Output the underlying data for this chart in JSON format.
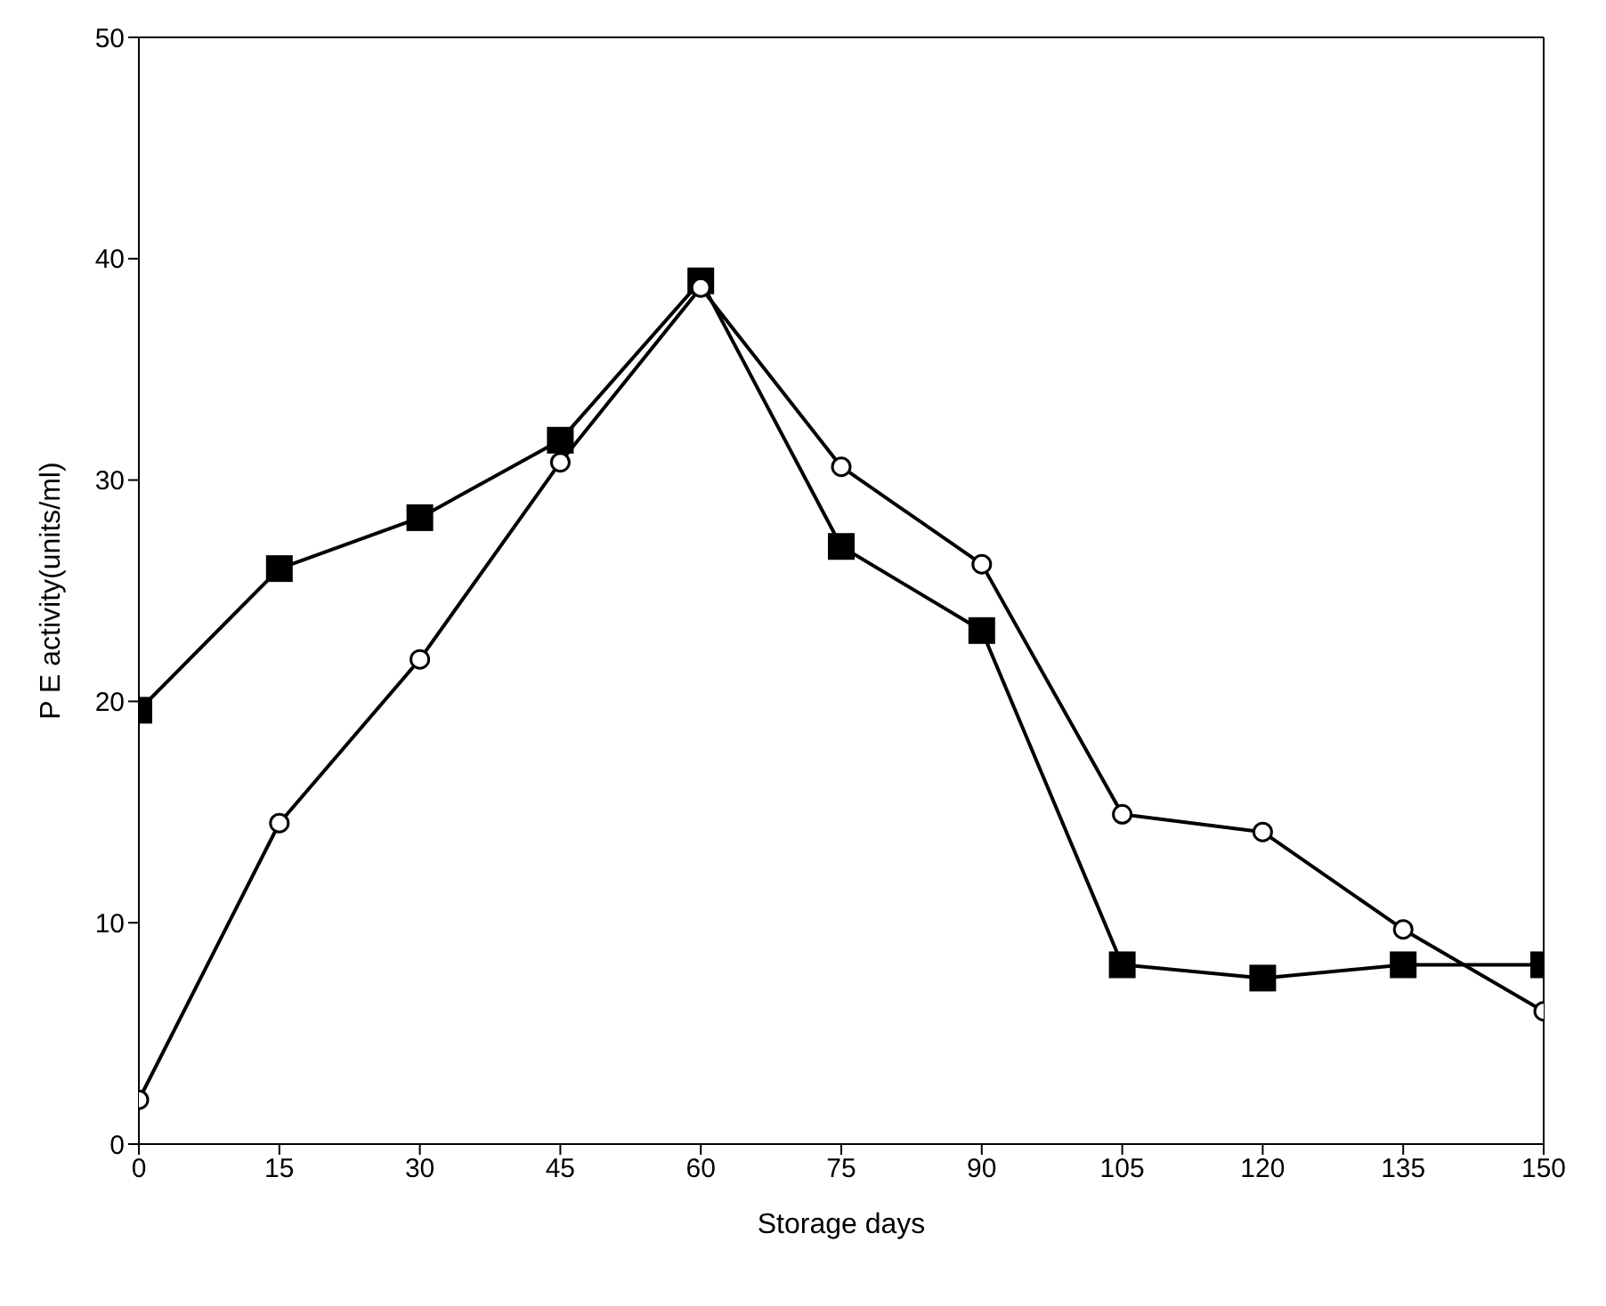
{
  "chart_data": {
    "type": "line",
    "xlabel": "Storage days",
    "ylabel": "P E activity(units/ml)",
    "x": [
      0,
      15,
      30,
      45,
      60,
      75,
      90,
      105,
      120,
      135,
      150
    ],
    "series": [
      {
        "color": "#000000",
        "marker": "square",
        "values": [
          19.6,
          26.0,
          28.3,
          31.8,
          39.0,
          27.0,
          23.2,
          8.1,
          7.5,
          8.1,
          8.1
        ]
      },
      {
        "color": "#000000",
        "marker": "circle",
        "values": [
          2.0,
          14.5,
          21.9,
          30.8,
          38.7,
          30.6,
          26.2,
          14.9,
          14.1,
          9.7,
          6.0
        ]
      }
    ],
    "xlim": [
      0,
      150
    ],
    "xticks": [
      0,
      15,
      30,
      45,
      60,
      75,
      90,
      105,
      120,
      135,
      150
    ],
    "ylim": [
      0,
      50
    ],
    "yticks": [
      0,
      10,
      20,
      30,
      40,
      50
    ],
    "grid": false,
    "line_style": "solid"
  }
}
